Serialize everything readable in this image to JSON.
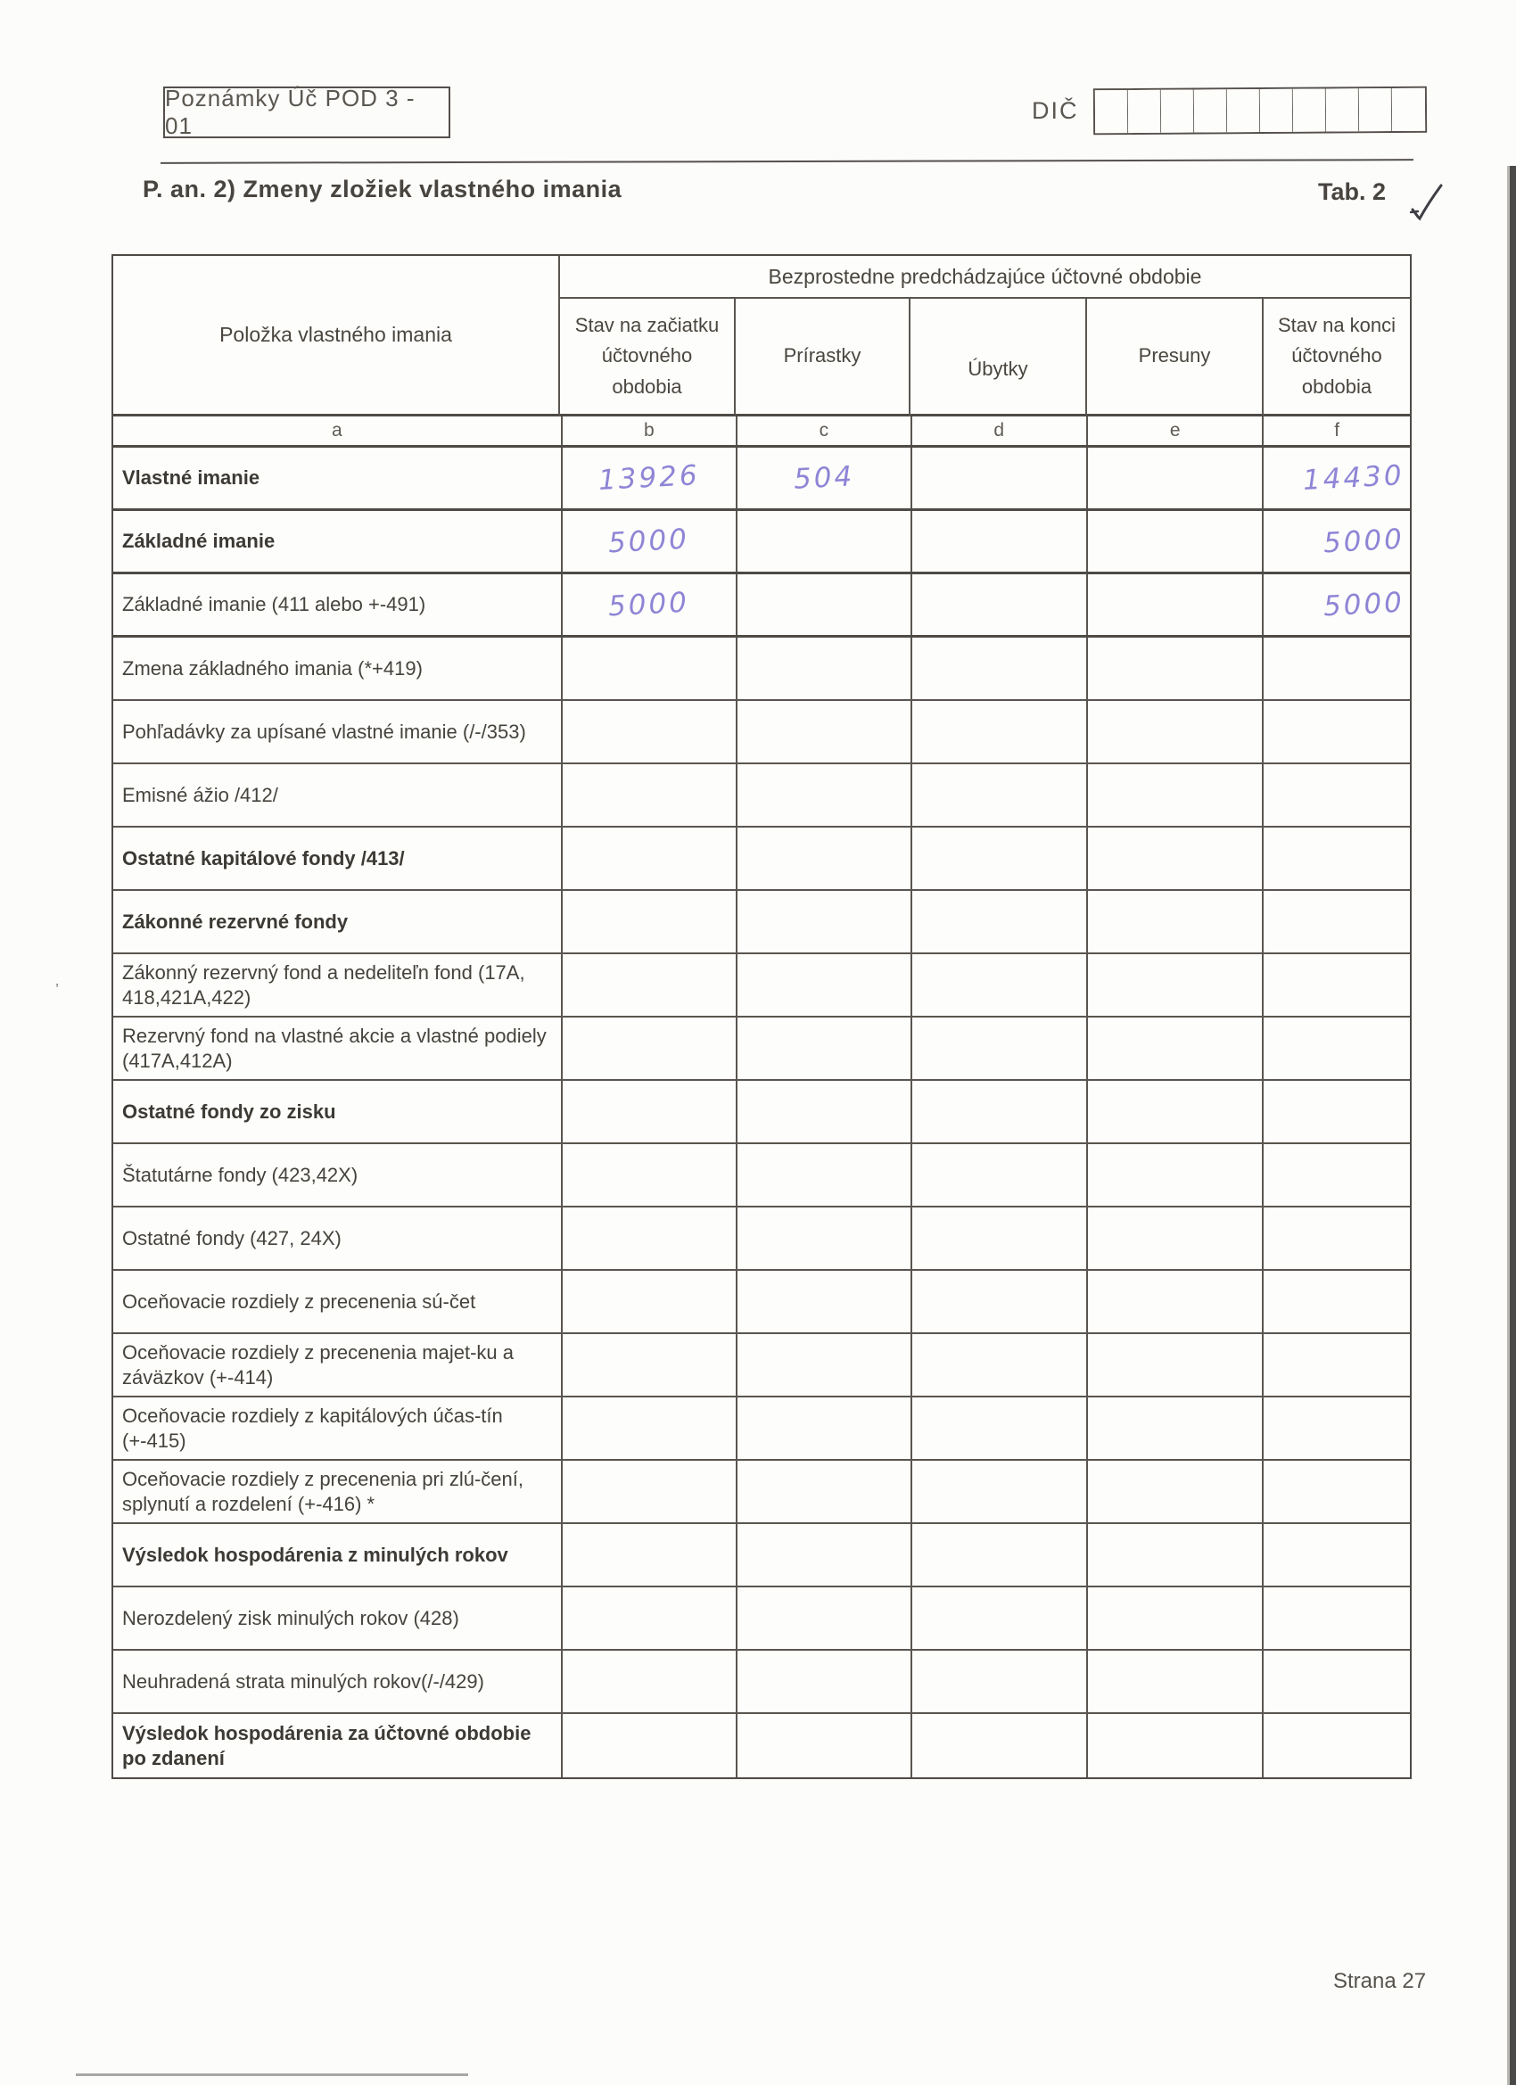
{
  "page": {
    "form_code": "Poznámky Úč POD 3 - 01",
    "dic_label": "DIČ",
    "dic_cell_count": 10,
    "section_title": "P. an. 2) Zmeny zložiek vlastného imania",
    "tab_label": "Tab. 2",
    "page_number": "Strana 27"
  },
  "colors": {
    "handwriting": "#8e85d6",
    "table_border": "#4e4a46",
    "paper": "#fcfcfa"
  },
  "table": {
    "item_column_header": "Položka vlastného imania",
    "span_header": "Bezprostedne predchádzajúce účtovné obdobie",
    "sub_headers": [
      "Stav na začiatku účtovného obdobia",
      "Prírastky",
      "Úbytky",
      "Presuny",
      "Stav na konci účtovného obdobia"
    ],
    "letter_row": [
      "a",
      "b",
      "c",
      "d",
      "e",
      "f"
    ],
    "value_columns": [
      "b",
      "c",
      "d",
      "e",
      "f"
    ],
    "rows": [
      {
        "label": "Vlastné imanie",
        "bold": true,
        "thick": true,
        "values": {
          "b": "13926",
          "c": "504",
          "d": "",
          "e": "",
          "f": "14430"
        }
      },
      {
        "label": "Základné imanie",
        "bold": true,
        "thick": true,
        "values": {
          "b": "5000",
          "c": "",
          "d": "",
          "e": "",
          "f": "5000"
        }
      },
      {
        "label": "Základné imanie (411 alebo +-491)",
        "bold": false,
        "thick": true,
        "values": {
          "b": "5000",
          "c": "",
          "d": "",
          "e": "",
          "f": "5000"
        }
      },
      {
        "label": "Zmena základného imania (*+419)",
        "bold": false,
        "thick": false,
        "values": {
          "b": "",
          "c": "",
          "d": "",
          "e": "",
          "f": ""
        }
      },
      {
        "label": "Pohľadávky za upísané vlastné imanie (/-/353)",
        "bold": false,
        "thick": false,
        "values": {
          "b": "",
          "c": "",
          "d": "",
          "e": "",
          "f": ""
        }
      },
      {
        "label": "Emisné ážio /412/",
        "bold": false,
        "thick": false,
        "values": {
          "b": "",
          "c": "",
          "d": "",
          "e": "",
          "f": ""
        }
      },
      {
        "label": "Ostatné kapitálové fondy /413/",
        "bold": true,
        "thick": false,
        "values": {
          "b": "",
          "c": "",
          "d": "",
          "e": "",
          "f": ""
        }
      },
      {
        "label": "Zákonné rezervné fondy",
        "bold": true,
        "thick": false,
        "values": {
          "b": "",
          "c": "",
          "d": "",
          "e": "",
          "f": ""
        }
      },
      {
        "label": "Zákonný rezervný fond  a nedeliteľn fond (17A, 418,421A,422)",
        "bold": false,
        "thick": false,
        "values": {
          "b": "",
          "c": "",
          "d": "",
          "e": "",
          "f": ""
        }
      },
      {
        "label": "Rezervný fond na vlastné akcie a vlastné podiely (417A,412A)",
        "bold": false,
        "thick": false,
        "values": {
          "b": "",
          "c": "",
          "d": "",
          "e": "",
          "f": ""
        }
      },
      {
        "label": "Ostatné fondy zo zisku",
        "bold": true,
        "thick": false,
        "values": {
          "b": "",
          "c": "",
          "d": "",
          "e": "",
          "f": ""
        }
      },
      {
        "label": "Štatutárne fondy (423,42X)",
        "bold": false,
        "thick": false,
        "values": {
          "b": "",
          "c": "",
          "d": "",
          "e": "",
          "f": ""
        }
      },
      {
        "label": "Ostatné fondy (427, 24X)",
        "bold": false,
        "thick": false,
        "values": {
          "b": "",
          "c": "",
          "d": "",
          "e": "",
          "f": ""
        }
      },
      {
        "label": "Oceňovacie rozdiely z precenenia sú-čet",
        "bold": false,
        "thick": false,
        "values": {
          "b": "",
          "c": "",
          "d": "",
          "e": "",
          "f": ""
        }
      },
      {
        "label": "Oceňovacie rozdiely z precenenia majet-ku a záväzkov (+-414)",
        "bold": false,
        "thick": false,
        "values": {
          "b": "",
          "c": "",
          "d": "",
          "e": "",
          "f": ""
        }
      },
      {
        "label": "Oceňovacie rozdiely z kapitálových účas-tín (+-415)",
        "bold": false,
        "thick": false,
        "values": {
          "b": "",
          "c": "",
          "d": "",
          "e": "",
          "f": ""
        }
      },
      {
        "label": "Oceňovacie rozdiely z precenenia pri zlú-čení, splynutí a rozdelení (+-416) *",
        "bold": false,
        "thick": false,
        "values": {
          "b": "",
          "c": "",
          "d": "",
          "e": "",
          "f": ""
        }
      },
      {
        "label": "Výsledok hospodárenia z minulých rokov",
        "bold": true,
        "thick": false,
        "values": {
          "b": "",
          "c": "",
          "d": "",
          "e": "",
          "f": ""
        }
      },
      {
        "label": "Nerozdelený zisk minulých rokov (428)",
        "bold": false,
        "thick": false,
        "values": {
          "b": "",
          "c": "",
          "d": "",
          "e": "",
          "f": ""
        }
      },
      {
        "label": "Neuhradená strata minulých rokov(/-/429)",
        "bold": false,
        "thick": false,
        "values": {
          "b": "",
          "c": "",
          "d": "",
          "e": "",
          "f": ""
        }
      },
      {
        "label": "Výsledok hospodárenia za účtovné obdobie po zdanení",
        "bold": true,
        "thick": false,
        "values": {
          "b": "",
          "c": "",
          "d": "",
          "e": "",
          "f": ""
        }
      }
    ]
  }
}
